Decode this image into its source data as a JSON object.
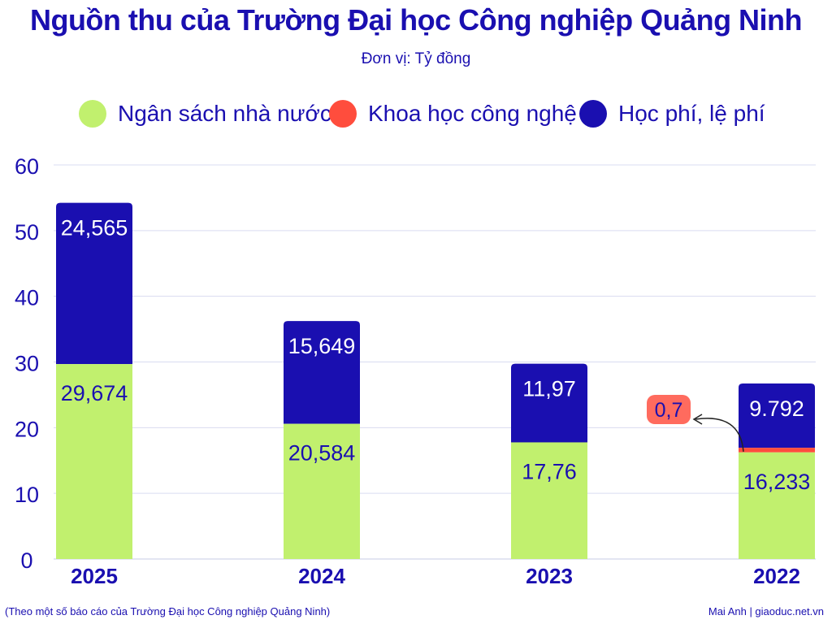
{
  "chart_data": {
    "type": "bar",
    "stacked": true,
    "title": "Nguồn thu của Trường Đại học Công nghiệp Quảng Ninh",
    "subtitle": "Đơn vị: Tỷ đồng",
    "categories": [
      "2025",
      "2024",
      "2023",
      "2022"
    ],
    "series": [
      {
        "name": "Ngân sách nhà nước",
        "color": "#c1f06e",
        "values": [
          29.674,
          20.584,
          17.76,
          16.233
        ],
        "labels": [
          "29,674",
          "20,584",
          "17,76",
          "16,233"
        ]
      },
      {
        "name": "Khoa học công nghệ",
        "color": "#ff4d3d",
        "values": [
          0,
          0,
          0,
          0.7
        ],
        "labels": [
          "",
          "",
          "",
          "0,7"
        ]
      },
      {
        "name": "Học phí, lệ phí",
        "color": "#1a0fb0",
        "values": [
          24.565,
          15.649,
          11.97,
          9.792
        ],
        "labels": [
          "24,565",
          "15,649",
          "11,97",
          "9.792"
        ]
      }
    ],
    "ylim": [
      0,
      60
    ],
    "yticks": [
      0,
      10,
      20,
      30,
      40,
      50,
      60
    ],
    "grid": true,
    "legend": "top",
    "source": "(Theo một số báo cáo của Trường Đại học Công nghiệp Quảng Ninh)",
    "credit": "Mai Anh | giaoduc.net.vn"
  }
}
